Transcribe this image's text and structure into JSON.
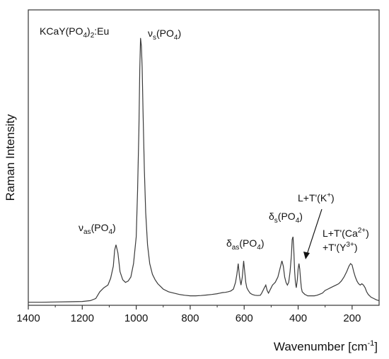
{
  "chart_data": {
    "type": "line",
    "title": "",
    "xlabel": "Wavenumber [cm",
    "xlabel_sup": "-1",
    "xlabel_end": "]",
    "ylabel": "Raman Intensity",
    "x_reversed": true,
    "xlim": [
      1400,
      100
    ],
    "ylim": [
      0,
      1.0
    ],
    "y_ticks_labeled": false,
    "grid": false,
    "line_color": "#3a3a3a",
    "x_ticks": [
      1400,
      1200,
      1000,
      800,
      600,
      400,
      200
    ],
    "x_tick_labels": [
      "1400",
      "1200",
      "1000",
      "800",
      "600",
      "400",
      "200"
    ],
    "series": [
      {
        "x": [
          1400,
          1350,
          1300,
          1250,
          1200,
          1170,
          1150,
          1135,
          1120,
          1105,
          1095,
          1085,
          1080,
          1075,
          1068,
          1060,
          1050,
          1040,
          1030,
          1020,
          1010,
          1000,
          995,
          990,
          987,
          984,
          981,
          978,
          975,
          970,
          965,
          958,
          950,
          940,
          930,
          920,
          910,
          900,
          880,
          860,
          840,
          820,
          800,
          780,
          760,
          740,
          720,
          700,
          690,
          680,
          670,
          660,
          650,
          640,
          632,
          627,
          622,
          617,
          612,
          607,
          602,
          598,
          594,
          590,
          585,
          578,
          570,
          560,
          550,
          540,
          535,
          530,
          525,
          520,
          515,
          510,
          505,
          500,
          495,
          490,
          485,
          480,
          475,
          470,
          465,
          460,
          455,
          450,
          445,
          440,
          435,
          430,
          425,
          422,
          419,
          416,
          413,
          410,
          407,
          403,
          400,
          397,
          394,
          391,
          388,
          385,
          380,
          375,
          370,
          365,
          360,
          350,
          340,
          330,
          320,
          310,
          300,
          290,
          280,
          270,
          260,
          250,
          240,
          230,
          220,
          212,
          206,
          200,
          194,
          188,
          182,
          176,
          170,
          164,
          158,
          152,
          146,
          140,
          130,
          120,
          110,
          100
        ],
        "y": [
          0.006,
          0.006,
          0.007,
          0.008,
          0.009,
          0.012,
          0.02,
          0.045,
          0.06,
          0.07,
          0.095,
          0.14,
          0.2,
          0.22,
          0.19,
          0.12,
          0.09,
          0.08,
          0.085,
          0.1,
          0.15,
          0.25,
          0.42,
          0.65,
          0.87,
          0.99,
          0.96,
          0.88,
          0.72,
          0.5,
          0.34,
          0.22,
          0.15,
          0.11,
          0.09,
          0.075,
          0.065,
          0.055,
          0.045,
          0.04,
          0.035,
          0.032,
          0.03,
          0.03,
          0.031,
          0.033,
          0.035,
          0.038,
          0.04,
          0.042,
          0.043,
          0.045,
          0.048,
          0.055,
          0.08,
          0.11,
          0.15,
          0.1,
          0.07,
          0.1,
          0.16,
          0.12,
          0.08,
          0.06,
          0.05,
          0.04,
          0.035,
          0.032,
          0.031,
          0.032,
          0.04,
          0.05,
          0.06,
          0.07,
          0.05,
          0.04,
          0.05,
          0.06,
          0.07,
          0.075,
          0.08,
          0.09,
          0.1,
          0.12,
          0.14,
          0.16,
          0.14,
          0.1,
          0.08,
          0.07,
          0.08,
          0.12,
          0.18,
          0.24,
          0.25,
          0.2,
          0.12,
          0.08,
          0.06,
          0.09,
          0.13,
          0.15,
          0.13,
          0.09,
          0.06,
          0.045,
          0.04,
          0.035,
          0.033,
          0.03,
          0.03,
          0.03,
          0.03,
          0.032,
          0.036,
          0.04,
          0.05,
          0.055,
          0.06,
          0.065,
          0.07,
          0.075,
          0.085,
          0.1,
          0.12,
          0.14,
          0.15,
          0.145,
          0.12,
          0.1,
          0.085,
          0.075,
          0.07,
          0.075,
          0.07,
          0.06,
          0.045,
          0.035,
          0.025,
          0.02,
          0.015,
          0.012
        ]
      }
    ],
    "annotations": [
      {
        "id": "sample",
        "text": "KCaY(PO",
        "sub": "4",
        "tail": ")",
        "sub2": "2",
        "end": ":Eu"
      },
      {
        "id": "vs",
        "sym": "ν",
        "sub": "s",
        "body": "(PO",
        "sub2": "4",
        "end": ")"
      },
      {
        "id": "vas",
        "sym": "ν",
        "sub": "as",
        "body": "(PO",
        "sub2": "4",
        "end": ")"
      },
      {
        "id": "das",
        "sym": "δ",
        "sub": "as",
        "body": "(PO",
        "sub2": "4",
        "end": ")"
      },
      {
        "id": "ds",
        "sym": "δ",
        "sub": "s",
        "body": "(PO",
        "sub2": "4",
        "end": ")"
      },
      {
        "id": "lk",
        "text": "L+T'(K",
        "sup": "+",
        "end": ")"
      },
      {
        "id": "lca",
        "text": "L+T'(Ca",
        "sup": "2+",
        "end": ")"
      },
      {
        "id": "ty",
        "text": "+T'(Y",
        "sup": "3+",
        "end": ")"
      }
    ]
  }
}
